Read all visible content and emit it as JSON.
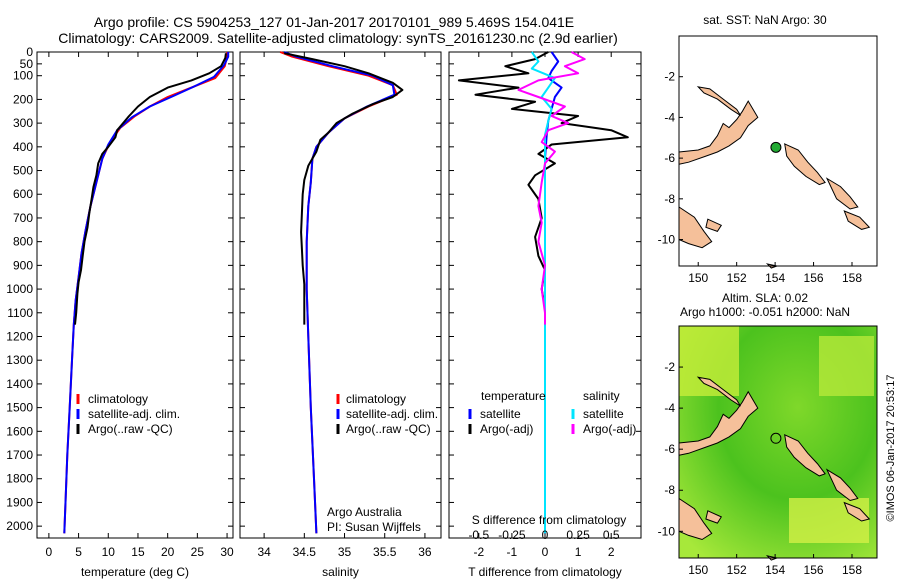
{
  "header": {
    "line1": "Argo profile: CS 5904253_127 01-Jan-2017 20170101_989 5.469S 154.041E",
    "line2": "Climatology: CARS2009. Satellite-adjusted climatology: synTS_20161230.nc (2.9d earlier)"
  },
  "colors": {
    "climatology": "#ff0000",
    "satellite": "#0000ff",
    "argo": "#000000",
    "salinity_sat": "#00e5ff",
    "salinity_argo": "#ff00ff",
    "land": "#f5c09a",
    "sla_field": "#55cc22"
  },
  "chart_data": [
    {
      "type": "line",
      "panel": "temperature",
      "xlabel": "temperature (deg C)",
      "ylabel": "",
      "xlim": [
        -2,
        31
      ],
      "ylim": [
        2050,
        0
      ],
      "xticks": [
        0,
        5,
        10,
        15,
        20,
        25,
        30
      ],
      "yticks": [
        0,
        50,
        100,
        200,
        300,
        400,
        500,
        600,
        700,
        800,
        900,
        1000,
        1100,
        1200,
        1300,
        1400,
        1500,
        1600,
        1700,
        1800,
        1900,
        2000
      ],
      "legend": [
        "climatology",
        "satellite-adj. clim.",
        "Argo(..raw -QC)"
      ],
      "series": [
        {
          "name": "climatology",
          "color": "#ff0000",
          "points": [
            [
              30,
              0
            ],
            [
              30,
              20
            ],
            [
              29.6,
              60
            ],
            [
              28,
              110
            ],
            [
              24,
              150
            ],
            [
              20,
              190
            ],
            [
              17,
              230
            ],
            [
              14.5,
              270
            ],
            [
              12,
              320
            ],
            [
              10.3,
              380
            ],
            [
              9,
              450
            ],
            [
              8,
              550
            ],
            [
              7,
              650
            ],
            [
              6.2,
              750
            ],
            [
              5.5,
              850
            ],
            [
              5,
              950
            ],
            [
              4.5,
              1050
            ],
            [
              4.2,
              1150
            ],
            [
              3.9,
              1300
            ],
            [
              3.5,
              1500
            ],
            [
              3.1,
              1700
            ],
            [
              2.8,
              1900
            ],
            [
              2.6,
              2030
            ]
          ]
        },
        {
          "name": "satellite-adj. clim.",
          "color": "#0000ff",
          "points": [
            [
              30.2,
              0
            ],
            [
              30.2,
              20
            ],
            [
              29.5,
              55
            ],
            [
              27.8,
              105
            ],
            [
              24.5,
              145
            ],
            [
              21,
              185
            ],
            [
              17,
              230
            ],
            [
              14,
              275
            ],
            [
              11.5,
              330
            ],
            [
              10,
              390
            ],
            [
              9,
              450
            ],
            [
              8,
              550
            ],
            [
              7,
              650
            ],
            [
              6.2,
              750
            ],
            [
              5.5,
              850
            ],
            [
              5,
              950
            ],
            [
              4.5,
              1050
            ],
            [
              4.2,
              1150
            ],
            [
              3.9,
              1300
            ],
            [
              3.5,
              1500
            ],
            [
              3.1,
              1700
            ],
            [
              2.8,
              1900
            ],
            [
              2.6,
              2030
            ]
          ]
        },
        {
          "name": "Argo(..raw -QC)",
          "color": "#000000",
          "points": [
            [
              29.8,
              5
            ],
            [
              29.7,
              25
            ],
            [
              29,
              60
            ],
            [
              27,
              90
            ],
            [
              24,
              120
            ],
            [
              20,
              150
            ],
            [
              17,
              190
            ],
            [
              15,
              230
            ],
            [
              13.5,
              270
            ],
            [
              12.5,
              300
            ],
            [
              11.5,
              330
            ],
            [
              11.2,
              360
            ],
            [
              10,
              400
            ],
            [
              9,
              430
            ],
            [
              8.3,
              470
            ],
            [
              8,
              520
            ],
            [
              7.5,
              570
            ],
            [
              7.2,
              620
            ],
            [
              6.8,
              680
            ],
            [
              6.5,
              740
            ],
            [
              6,
              800
            ],
            [
              5.7,
              860
            ],
            [
              5.4,
              920
            ],
            [
              5,
              970
            ],
            [
              4.8,
              1020
            ],
            [
              4.6,
              1100
            ],
            [
              4.4,
              1150
            ]
          ]
        }
      ]
    },
    {
      "type": "line",
      "panel": "salinity",
      "xlabel": "salinity",
      "xlim": [
        33.7,
        36.2
      ],
      "ylim": [
        2050,
        0
      ],
      "xticks": [
        34,
        34.5,
        35,
        35.5,
        36
      ],
      "xticklabels": [
        "34",
        "34.5",
        "35",
        "35.5",
        "36"
      ],
      "legend": [
        "climatology",
        "satellite-adj. clim.",
        "Argo(..raw -QC)"
      ],
      "annotations": [
        "Argo Australia",
        "PI: Susan Wijffels"
      ],
      "series": [
        {
          "name": "climatology",
          "color": "#ff0000",
          "points": [
            [
              34.2,
              0
            ],
            [
              34.35,
              20
            ],
            [
              34.8,
              60
            ],
            [
              35.3,
              100
            ],
            [
              35.6,
              140
            ],
            [
              35.65,
              180
            ],
            [
              35.3,
              230
            ],
            [
              35,
              280
            ],
            [
              34.8,
              340
            ],
            [
              34.65,
              400
            ],
            [
              34.6,
              450
            ],
            [
              34.58,
              550
            ],
            [
              34.55,
              650
            ],
            [
              34.53,
              800
            ],
            [
              34.53,
              1000
            ],
            [
              34.55,
              1200
            ],
            [
              34.58,
              1500
            ],
            [
              34.62,
              1800
            ],
            [
              34.65,
              2030
            ]
          ]
        },
        {
          "name": "satellite-adj. clim.",
          "color": "#0000ff",
          "points": [
            [
              34.25,
              0
            ],
            [
              34.4,
              20
            ],
            [
              34.85,
              60
            ],
            [
              35.35,
              100
            ],
            [
              35.6,
              140
            ],
            [
              35.62,
              180
            ],
            [
              35.28,
              230
            ],
            [
              35,
              280
            ],
            [
              34.8,
              340
            ],
            [
              34.65,
              400
            ],
            [
              34.6,
              450
            ],
            [
              34.58,
              550
            ],
            [
              34.55,
              650
            ],
            [
              34.53,
              800
            ],
            [
              34.53,
              1000
            ],
            [
              34.55,
              1200
            ],
            [
              34.58,
              1500
            ],
            [
              34.62,
              1800
            ],
            [
              34.65,
              2030
            ]
          ]
        },
        {
          "name": "Argo(..raw -QC)",
          "color": "#000000",
          "points": [
            [
              34.25,
              5
            ],
            [
              34.6,
              30
            ],
            [
              35,
              60
            ],
            [
              35.3,
              90
            ],
            [
              35.6,
              130
            ],
            [
              35.72,
              160
            ],
            [
              35.6,
              190
            ],
            [
              35.35,
              220
            ],
            [
              35.1,
              260
            ],
            [
              34.9,
              300
            ],
            [
              34.8,
              340
            ],
            [
              34.7,
              370
            ],
            [
              34.65,
              420
            ],
            [
              34.55,
              480
            ],
            [
              34.5,
              540
            ],
            [
              34.48,
              600
            ],
            [
              34.47,
              680
            ],
            [
              34.46,
              760
            ],
            [
              34.47,
              830
            ],
            [
              34.48,
              900
            ],
            [
              34.5,
              980
            ],
            [
              34.5,
              1060
            ],
            [
              34.5,
              1150
            ]
          ]
        }
      ]
    },
    {
      "type": "line",
      "panel": "differences",
      "xlabel": "T difference from climatology",
      "top_axis_label": "S difference from climatology",
      "xlim": [
        -2.9,
        2.9
      ],
      "ylim": [
        2050,
        0
      ],
      "xticks": [
        -2,
        -1,
        0,
        1,
        2
      ],
      "top_ticks": [
        -0.5,
        -0.25,
        0,
        0.25,
        0.5
      ],
      "legend_headers": [
        "temperature",
        "salinity"
      ],
      "legend": [
        "satellite",
        "Argo(-adj)",
        "satellite",
        "Argo(-adj)"
      ],
      "series": [
        {
          "name": "satellite",
          "group": "temperature",
          "color": "#0000ff",
          "points": [
            [
              0.2,
              0
            ],
            [
              0.4,
              40
            ],
            [
              0.2,
              80
            ],
            [
              0.1,
              110
            ],
            [
              0.5,
              150
            ],
            [
              0.3,
              190
            ],
            [
              0.2,
              240
            ],
            [
              0.1,
              290
            ],
            [
              0.05,
              350
            ],
            [
              0,
              450
            ],
            [
              0,
              600
            ],
            [
              0,
              800
            ],
            [
              0,
              1000
            ],
            [
              0,
              1200
            ],
            [
              0,
              1500
            ],
            [
              0,
              1800
            ],
            [
              0,
              2030
            ]
          ]
        },
        {
          "name": "Argo(-adj)",
          "group": "temperature",
          "color": "#000000",
          "points": [
            [
              0.1,
              0
            ],
            [
              -0.3,
              30
            ],
            [
              -1.2,
              60
            ],
            [
              -0.5,
              90
            ],
            [
              -2.6,
              120
            ],
            [
              -0.8,
              150
            ],
            [
              -2.1,
              180
            ],
            [
              -0.3,
              210
            ],
            [
              -1,
              240
            ],
            [
              1.0,
              270
            ],
            [
              0.5,
              300
            ],
            [
              2.0,
              330
            ],
            [
              2.5,
              360
            ],
            [
              0.2,
              390
            ],
            [
              -0.2,
              430
            ],
            [
              0.3,
              470
            ],
            [
              -0.3,
              520
            ],
            [
              -0.5,
              560
            ],
            [
              -0.2,
              620
            ],
            [
              -0.1,
              700
            ],
            [
              -0.3,
              780
            ],
            [
              -0.2,
              860
            ],
            [
              0,
              920
            ],
            [
              -0.1,
              1000
            ],
            [
              0,
              1080
            ],
            [
              0,
              1150
            ]
          ]
        },
        {
          "name": "satellite",
          "group": "salinity",
          "color": "#00e5ff",
          "points": [
            [
              -0.4,
              0
            ],
            [
              -0.2,
              40
            ],
            [
              -0.4,
              70
            ],
            [
              0.3,
              110
            ],
            [
              0.1,
              150
            ],
            [
              -0.1,
              190
            ],
            [
              0.2,
              240
            ],
            [
              0.1,
              290
            ],
            [
              0,
              350
            ],
            [
              0,
              450
            ],
            [
              0,
              600
            ],
            [
              0,
              800
            ],
            [
              0,
              1000
            ],
            [
              0,
              1200
            ],
            [
              0,
              1500
            ],
            [
              0,
              1800
            ],
            [
              0,
              2030
            ]
          ]
        },
        {
          "name": "Argo(-adj)",
          "group": "salinity",
          "color": "#ff00ff",
          "points": [
            [
              0.8,
              0
            ],
            [
              1.2,
              30
            ],
            [
              0.6,
              60
            ],
            [
              1.0,
              90
            ],
            [
              -0.2,
              120
            ],
            [
              -0.8,
              160
            ],
            [
              -0.2,
              190
            ],
            [
              0.6,
              230
            ],
            [
              0.2,
              270
            ],
            [
              0.7,
              300
            ],
            [
              0.1,
              330
            ],
            [
              -0.1,
              380
            ],
            [
              0.3,
              420
            ],
            [
              0,
              470
            ],
            [
              -0.1,
              550
            ],
            [
              -0.2,
              650
            ],
            [
              -0.1,
              720
            ],
            [
              -0.2,
              800
            ],
            [
              0,
              900
            ],
            [
              -0.1,
              1000
            ],
            [
              0,
              1100
            ],
            [
              0,
              1150
            ]
          ]
        }
      ]
    }
  ],
  "map_sst": {
    "title": "sat. SST: NaN Argo: 30",
    "xticks": [
      150,
      152,
      154,
      156,
      158
    ],
    "yticks": [
      -2,
      -4,
      -6,
      -8,
      -10
    ],
    "xlim": [
      149,
      159.3
    ],
    "ylim": [
      -11.3,
      0
    ],
    "float_position": [
      154.041,
      -5.469
    ]
  },
  "map_sla": {
    "title_line1": "Altim. SLA: 0.02",
    "title_line2": "Argo h1000: -0.051 h2000: NaN",
    "xticks": [
      150,
      152,
      154,
      156,
      158
    ],
    "yticks": [
      -2,
      -4,
      -6,
      -8,
      -10
    ],
    "xlim": [
      149,
      159.3
    ],
    "ylim": [
      -11.3,
      0
    ],
    "float_position": [
      154.041,
      -5.469
    ]
  },
  "credit": "©IMOS 06-Jan-2017 20:53:17"
}
